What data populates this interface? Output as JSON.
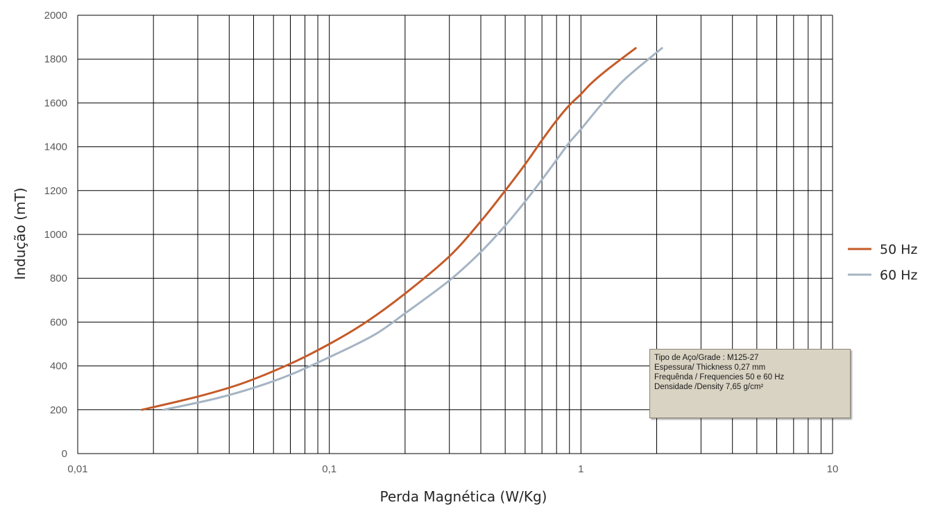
{
  "chart_data": {
    "type": "line",
    "xlabel": "Perda Magnética (W/Kg)",
    "ylabel": "Indução (mT)",
    "x_scale": "log",
    "xlim": [
      0.01,
      10
    ],
    "ylim": [
      0,
      2000
    ],
    "x_tick_labels": [
      "0,01",
      "0,1",
      "1",
      "10"
    ],
    "x_tick_values": [
      0.01,
      0.1,
      1,
      10
    ],
    "y_ticks": [
      0,
      200,
      400,
      600,
      800,
      1000,
      1200,
      1400,
      1600,
      1800,
      2000
    ],
    "grid": true,
    "legend_position": "right",
    "series": [
      {
        "name": "50 Hz",
        "color": "#c55a28",
        "points": [
          [
            0.018,
            200
          ],
          [
            0.03,
            260
          ],
          [
            0.045,
            320
          ],
          [
            0.07,
            410
          ],
          [
            0.1,
            500
          ],
          [
            0.14,
            600
          ],
          [
            0.2,
            730
          ],
          [
            0.3,
            900
          ],
          [
            0.4,
            1060
          ],
          [
            0.5,
            1200
          ],
          [
            0.6,
            1320
          ],
          [
            0.7,
            1430
          ],
          [
            0.8,
            1520
          ],
          [
            0.9,
            1590
          ],
          [
            1.0,
            1640
          ],
          [
            1.1,
            1690
          ],
          [
            1.3,
            1760
          ],
          [
            1.65,
            1850
          ]
        ]
      },
      {
        "name": "60 Hz",
        "color": "#a5b4c3",
        "points": [
          [
            0.022,
            200
          ],
          [
            0.035,
            250
          ],
          [
            0.05,
            300
          ],
          [
            0.07,
            360
          ],
          [
            0.1,
            440
          ],
          [
            0.15,
            540
          ],
          [
            0.2,
            640
          ],
          [
            0.3,
            790
          ],
          [
            0.4,
            920
          ],
          [
            0.5,
            1040
          ],
          [
            0.6,
            1150
          ],
          [
            0.7,
            1250
          ],
          [
            0.8,
            1340
          ],
          [
            0.9,
            1420
          ],
          [
            1.0,
            1480
          ],
          [
            1.2,
            1590
          ],
          [
            1.5,
            1710
          ],
          [
            2.1,
            1850
          ]
        ]
      }
    ]
  },
  "infobox": {
    "line1": "Tipo de Aço/Grade :  M125-27",
    "line2": "Espessura/ Thickness  0,27  mm",
    "line3": "Frequênda / Frequencies   50 e 60 Hz",
    "line4": "Densidade /Density  7,65 g/cm²"
  }
}
